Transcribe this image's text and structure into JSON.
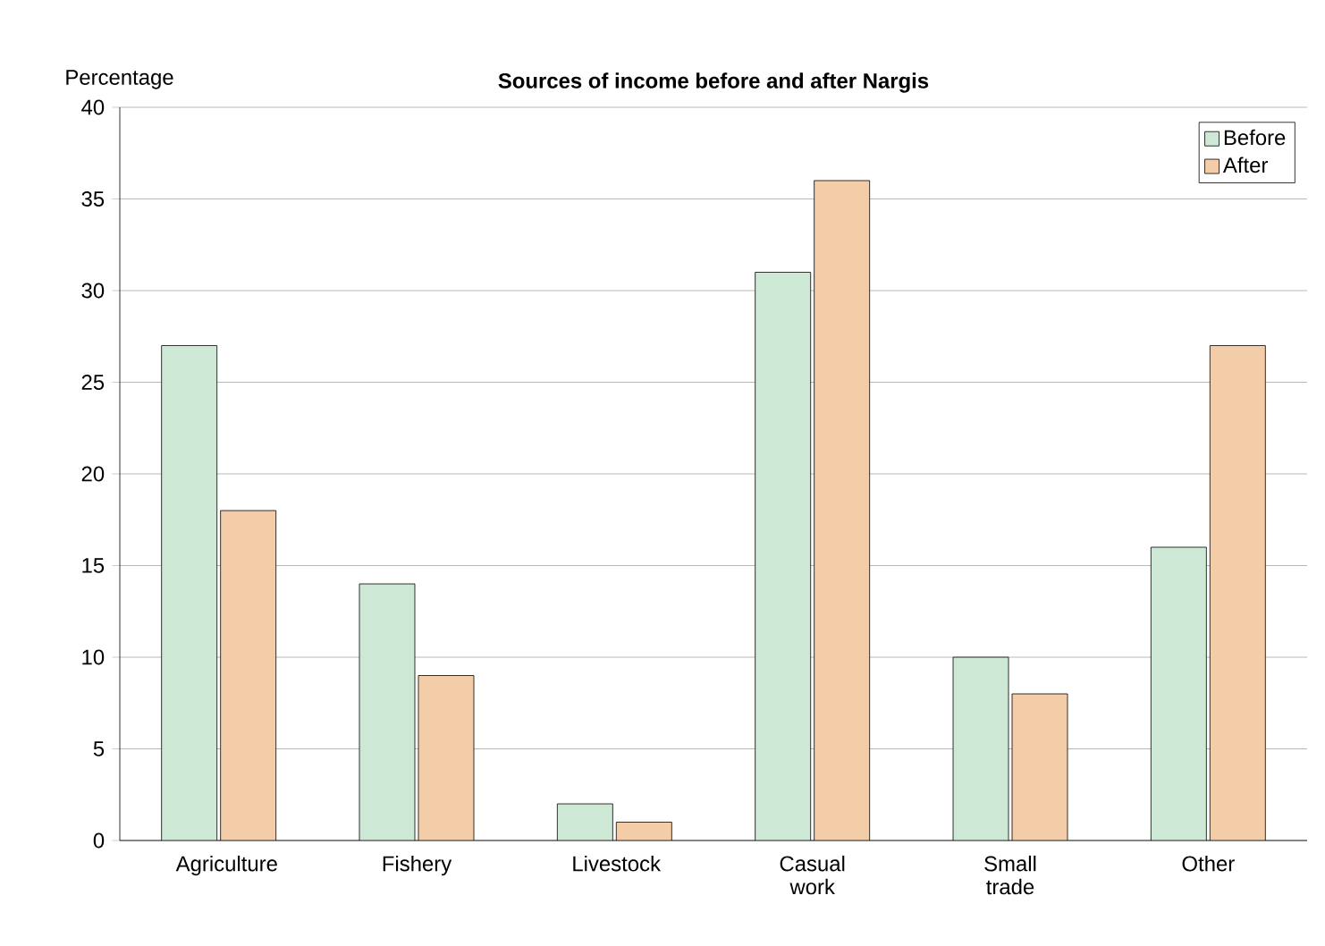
{
  "chart_data": {
    "type": "bar",
    "title": "Sources of income before and after Nargis",
    "ylabel": "Percentage",
    "categories": [
      "Agriculture",
      "Fishery",
      "Livestock",
      "Casual work",
      "Small trade",
      "Other"
    ],
    "series": [
      {
        "name": "Before",
        "color": "#cde8d5",
        "values": [
          27,
          14,
          2,
          31,
          10,
          16
        ]
      },
      {
        "name": "After",
        "color": "#f3cca8",
        "values": [
          18,
          9,
          1,
          36,
          8,
          27
        ]
      }
    ],
    "ylim": [
      0,
      40
    ],
    "yticks": [
      0,
      5,
      10,
      15,
      20,
      25,
      30,
      35,
      40
    ],
    "grid": "y",
    "legend": "top right"
  }
}
